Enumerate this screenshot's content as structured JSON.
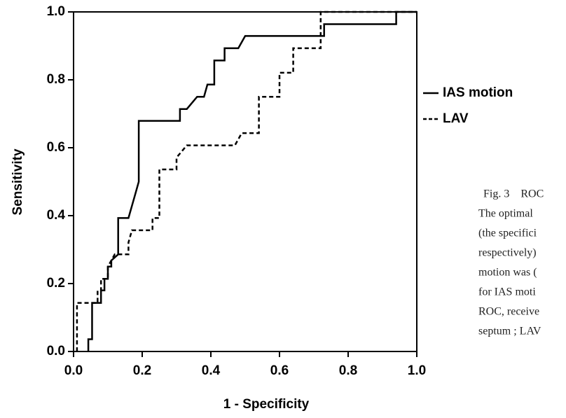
{
  "chart_data": {
    "type": "line",
    "xlabel": "1 - Specificity",
    "ylabel": "Sensitivity",
    "xlim": [
      0,
      1
    ],
    "ylim": [
      0,
      1
    ],
    "xticks": [
      {
        "value": 0,
        "label": "0.0"
      },
      0.2,
      0.4,
      0.6,
      0.8,
      {
        "value": 1,
        "label": "1.0"
      }
    ],
    "yticks": [
      {
        "value": 0,
        "label": "0.0"
      },
      0.2,
      0.4,
      0.6,
      0.8,
      {
        "value": 1,
        "label": "1.0"
      }
    ],
    "series": [
      {
        "name": "IAS motion",
        "color": "#000000",
        "line_style": "solid",
        "x": [
          0.043,
          0.043,
          0.054,
          0.054,
          0.08,
          0.08,
          0.09,
          0.09,
          0.1,
          0.1,
          0.11,
          0.11,
          0.13,
          0.13,
          0.16,
          0.18,
          0.19,
          0.19,
          0.31,
          0.31,
          0.33,
          0.36,
          0.38,
          0.39,
          0.41,
          0.41,
          0.44,
          0.44,
          0.48,
          0.5,
          0.73,
          0.73,
          0.94,
          0.94,
          1
        ],
        "values": [
          0,
          0.036,
          0.036,
          0.143,
          0.143,
          0.18,
          0.18,
          0.214,
          0.214,
          0.25,
          0.25,
          0.268,
          0.286,
          0.393,
          0.393,
          0.464,
          0.5,
          0.679,
          0.679,
          0.714,
          0.714,
          0.75,
          0.75,
          0.786,
          0.786,
          0.857,
          0.857,
          0.893,
          0.893,
          0.929,
          0.929,
          0.964,
          0.964,
          1,
          1
        ]
      },
      {
        "name": "LAV",
        "color": "#000000",
        "line_style": "dashed",
        "x": [
          0.01,
          0.01,
          0.07,
          0.07,
          0.08,
          0.08,
          0.1,
          0.1,
          0.12,
          0.16,
          0.16,
          0.17,
          0.23,
          0.23,
          0.25,
          0.25,
          0.3,
          0.3,
          0.33,
          0.47,
          0.49,
          0.54,
          0.54,
          0.6,
          0.6,
          0.64,
          0.64,
          0.72,
          0.72,
          1
        ],
        "values": [
          0,
          0.143,
          0.143,
          0.179,
          0.179,
          0.214,
          0.214,
          0.25,
          0.286,
          0.286,
          0.321,
          0.357,
          0.357,
          0.393,
          0.393,
          0.536,
          0.536,
          0.571,
          0.607,
          0.607,
          0.643,
          0.643,
          0.75,
          0.75,
          0.821,
          0.821,
          0.893,
          0.893,
          1,
          1
        ]
      }
    ]
  },
  "caption": [
    "Fig. 3　ROC",
    "The optimal",
    "(the specifici",
    "respectively)",
    "motion was (",
    "for IAS moti",
    "ROC, receive",
    "septum ; LAV"
  ]
}
